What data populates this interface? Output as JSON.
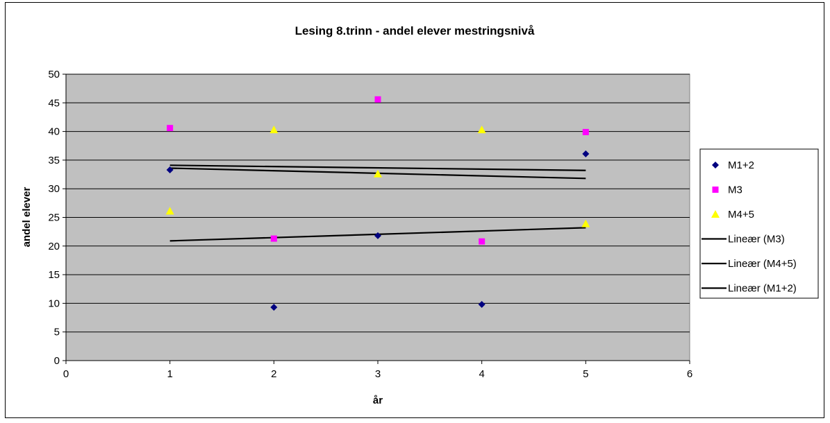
{
  "chart_data": {
    "type": "scatter",
    "title": "Lesing 8.trinn - andel elever mestringsnivå",
    "xlabel": "år",
    "ylabel": "andel elever",
    "xlim": [
      0,
      6
    ],
    "ylim": [
      0,
      50
    ],
    "x_ticks": [
      0,
      1,
      2,
      3,
      4,
      5,
      6
    ],
    "y_ticks": [
      0,
      5,
      10,
      15,
      20,
      25,
      30,
      35,
      40,
      45,
      50
    ],
    "grid": "horizontal",
    "plot_background": "#c0c0c0",
    "legend_position": "right",
    "series": [
      {
        "name": "M1+2",
        "marker": "diamond",
        "color": "#000080",
        "x": [
          1,
          2,
          3,
          4,
          5
        ],
        "y": [
          33.3,
          9.3,
          21.8,
          9.8,
          36.1
        ]
      },
      {
        "name": "M3",
        "marker": "square",
        "color": "#ff00ff",
        "x": [
          1,
          2,
          3,
          4,
          5
        ],
        "y": [
          40.6,
          21.3,
          45.6,
          20.8,
          39.9
        ]
      },
      {
        "name": "M4+5",
        "marker": "triangle",
        "color": "#ffff00",
        "x": [
          1,
          2,
          3,
          4,
          5
        ],
        "y": [
          26.1,
          40.3,
          32.6,
          40.3,
          23.9
        ]
      }
    ],
    "trendlines": [
      {
        "name": "Lineær (M3)",
        "color": "#000000",
        "x": [
          1,
          5
        ],
        "y": [
          34.1,
          33.2
        ]
      },
      {
        "name": "Lineær (M4+5)",
        "color": "#000000",
        "x": [
          1,
          5
        ],
        "y": [
          33.6,
          31.8
        ]
      },
      {
        "name": "Lineær (M1+2)",
        "color": "#000000",
        "x": [
          1,
          5
        ],
        "y": [
          20.9,
          23.2
        ]
      }
    ]
  }
}
